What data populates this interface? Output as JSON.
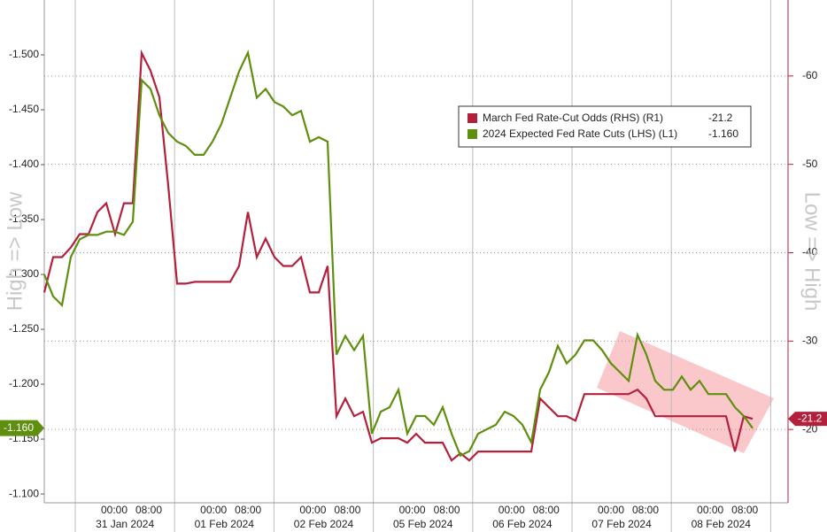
{
  "chart_data": {
    "type": "line",
    "y_label": "High => Low",
    "y2_label": "Low => High",
    "days": [
      "31 Jan 2024",
      "01 Feb 2024",
      "02 Feb 2024",
      "05 Feb 2024",
      "06 Feb 2024",
      "07 Feb 2024",
      "08 Feb 2024"
    ],
    "hours": [
      "00:00",
      "08:00"
    ],
    "ylim": [
      -1.092,
      -1.55
    ],
    "yticks": [
      {
        "value": -1.1,
        "label": "-1.100"
      },
      {
        "value": -1.15,
        "label": "-1.150"
      },
      {
        "value": -1.2,
        "label": "-1.200"
      },
      {
        "value": -1.25,
        "label": "-1.250"
      },
      {
        "value": -1.3,
        "label": "-1.300"
      },
      {
        "value": -1.35,
        "label": "-1.350"
      },
      {
        "value": -1.4,
        "label": "-1.400"
      },
      {
        "value": -1.45,
        "label": "-1.450"
      },
      {
        "value": -1.5,
        "label": "-1.500"
      }
    ],
    "y2lim": [
      -11.7,
      -68.6
    ],
    "y2ticks": [
      -20,
      -30,
      -40,
      -50,
      -60
    ],
    "grid": true,
    "series": [
      {
        "name": "March Fed Rate-Cut Odds (RHS) (R1)",
        "color": "#b3203c",
        "axis": "y2",
        "values": [
          -35.5,
          -39.5,
          -39.5,
          -40.6,
          -42.1,
          -42.1,
          -44.6,
          -45.6,
          -42.1,
          -45.6,
          -45.6,
          -62.6,
          -60.6,
          -57.6,
          -47.6,
          -36.5,
          -36.5,
          -36.7,
          -36.7,
          -36.7,
          -36.7,
          -36.7,
          -38.5,
          -44.6,
          -39.5,
          -41.6,
          -39.5,
          -38.5,
          -38.5,
          -39.5,
          -35.5,
          -35.5,
          -38.5,
          -21.5,
          -23.5,
          -21.5,
          -22.0,
          -18.5,
          -19.0,
          -19.0,
          -19.0,
          -18.5,
          -19.5,
          -18.5,
          -18.5,
          -18.5,
          -16.5,
          -17.3,
          -16.5,
          -17.5,
          -17.5,
          -17.5,
          -17.5,
          -17.5,
          -17.5,
          -17.5,
          -23.5,
          -22.5,
          -21.5,
          -21.5,
          -21.0,
          -24.0,
          -24.0,
          -24.0,
          -24.0,
          -24.0,
          -24.0,
          -24.5,
          -23.5,
          -21.5,
          -21.5,
          -21.5,
          -21.5,
          -21.5,
          -21.5,
          -21.5,
          -21.5,
          -21.5,
          -17.5,
          -21.5,
          -21.2
        ]
      },
      {
        "name": "2024 Expected Fed Rate Cuts (LHS) (L1)",
        "color": "#5f8f0f",
        "axis": "y",
        "values": [
          -1.3,
          -1.28,
          -1.272,
          -1.316,
          -1.332,
          -1.336,
          -1.336,
          -1.339,
          -1.339,
          -1.336,
          -1.348,
          -1.477,
          -1.469,
          -1.445,
          -1.429,
          -1.421,
          -1.417,
          -1.409,
          -1.409,
          -1.421,
          -1.437,
          -1.461,
          -1.485,
          -1.502,
          -1.461,
          -1.469,
          -1.457,
          -1.453,
          -1.445,
          -1.449,
          -1.421,
          -1.425,
          -1.421,
          -1.227,
          -1.244,
          -1.231,
          -1.244,
          -1.155,
          -1.175,
          -1.179,
          -1.195,
          -1.155,
          -1.171,
          -1.171,
          -1.163,
          -1.179,
          -1.155,
          -1.135,
          -1.139,
          -1.155,
          -1.159,
          -1.163,
          -1.175,
          -1.171,
          -1.163,
          -1.147,
          -1.195,
          -1.211,
          -1.235,
          -1.219,
          -1.227,
          -1.24,
          -1.24,
          -1.231,
          -1.219,
          -1.211,
          -1.203,
          -1.245,
          -1.227,
          -1.203,
          -1.195,
          -1.195,
          -1.207,
          -1.195,
          -1.203,
          -1.191,
          -1.191,
          -1.191,
          -1.179,
          -1.171,
          -1.16
        ],
        "value_labels": [
          null,
          null,
          null,
          null,
          null,
          null,
          null,
          null,
          null,
          null,
          null,
          null,
          null,
          null,
          null,
          null,
          null,
          null,
          null,
          null,
          null,
          null,
          null,
          null,
          null,
          null,
          null,
          null,
          null,
          null,
          null,
          null,
          null,
          null,
          null,
          null,
          null,
          null,
          null,
          null,
          null,
          null,
          null,
          null,
          null,
          null,
          null,
          null,
          null,
          null,
          null,
          null,
          null,
          null,
          null,
          null,
          null,
          null,
          null,
          null,
          null,
          null,
          null,
          null,
          null,
          null,
          null,
          null,
          null,
          null,
          null,
          null,
          null,
          null,
          null,
          null,
          null,
          null,
          null,
          null,
          "-1.160"
        ]
      }
    ]
  }
}
